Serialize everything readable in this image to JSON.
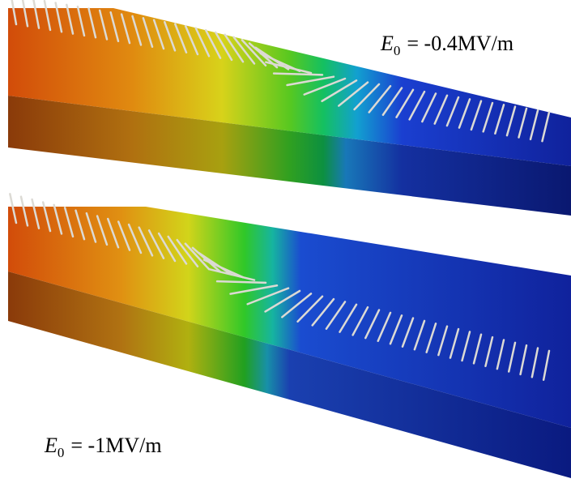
{
  "labels": [
    {
      "symbol": "E",
      "subscript": "0",
      "text": "= -0.4MV/m"
    },
    {
      "symbol": "E",
      "subscript": "0",
      "text": "= -1MV/m"
    }
  ]
}
